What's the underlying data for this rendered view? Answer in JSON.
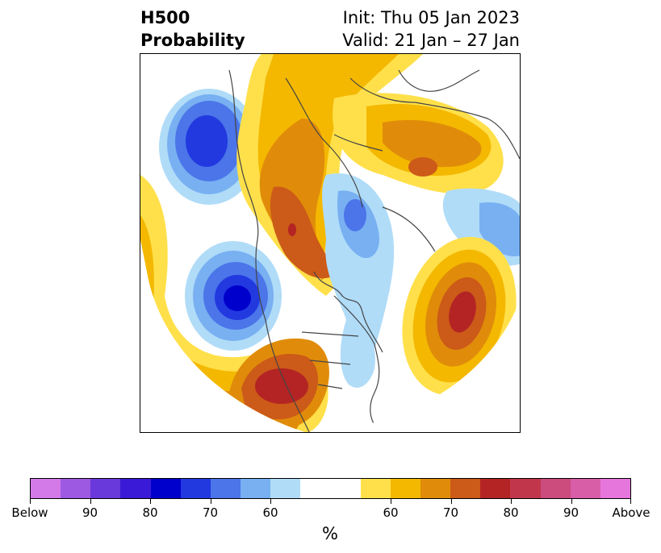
{
  "title": {
    "left_line1": "H500",
    "left_line2": "Probability",
    "right_line1": "Init: Thu 05 Jan 2023",
    "right_line2": "Valid: 21 Jan – 27 Jan"
  },
  "colorbar": {
    "unit": "%",
    "colors": [
      "#d37ae8",
      "#9e59e2",
      "#6a39dc",
      "#3a1ad6",
      "#0000cc",
      "#2239e0",
      "#4b75e8",
      "#78b0f2",
      "#b0dcf8",
      "#ffffff",
      "#ffe04a",
      "#f4b800",
      "#e08c0a",
      "#cc5a18",
      "#b42424",
      "#c2364c",
      "#cc4c7e",
      "#d85ea8",
      "#e676dc"
    ],
    "tick_labels": [
      "Below",
      "90",
      "80",
      "70",
      "60",
      "60",
      "70",
      "80",
      "90",
      "Above"
    ]
  },
  "legend_levels": {
    "below": [
      "Below",
      "90",
      "80",
      "70",
      "60"
    ],
    "above": [
      "60",
      "70",
      "80",
      "90",
      "Above"
    ]
  },
  "map": {
    "colors": {
      "blue_light": "#b0dcf8",
      "blue_mid": "#78b0f2",
      "blue_medium": "#4b75e8",
      "blue_dark": "#2239e0",
      "blue_deep": "#0000cc",
      "yellow": "#ffe04a",
      "gold": "#f4b800",
      "orange": "#e08c0a",
      "dark_orange": "#cc5a18",
      "red": "#b42424",
      "border": "#444444"
    }
  }
}
